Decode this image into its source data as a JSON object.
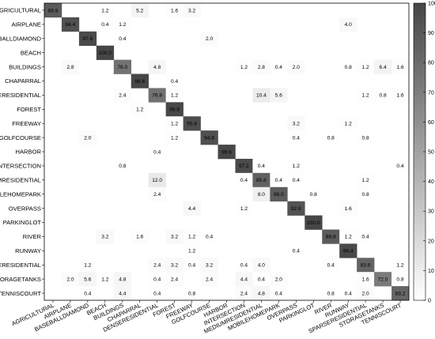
{
  "chart_data": {
    "type": "heatmap",
    "title": "",
    "xlabel": "",
    "ylabel": "",
    "row_labels": [
      "AGRICULTURAL",
      "AIRPLANE",
      "BASEBALLDIAMOND",
      "BEACH",
      "BUILDINGS",
      "CHAPARRAL",
      "DENSERESIDENTIAL",
      "FOREST",
      "FREEWAY",
      "GOLFCOURSE",
      "HARBOR",
      "INTERSECTION",
      "MEDIUMRESIDENTIAL",
      "MOBILEHOMEPARK",
      "OVERPASS",
      "PARKINGLOT",
      "RIVER",
      "RUNWAY",
      "SPARSERESIDENTIAL",
      "STORAGETANKS",
      "TENNISCOURT"
    ],
    "col_labels": [
      "AGRICULTURAL",
      "AIRPLANE",
      "BASEBALLDIAMOND",
      "BEACH",
      "BUILDINGS",
      "CHAPARRAL",
      "DENSERESIDENTIAL",
      "FOREST",
      "FREEWAY",
      "GOLFCOURSE",
      "HARBOR",
      "INTERSECTION",
      "MEDIUMRESIDENTIAL",
      "MOBILEHOMEPARK",
      "OVERPASS",
      "PARKINGLOT",
      "RIVER",
      "RUNWAY",
      "SPARSERESIDENTIAL",
      "STORAGETANKS",
      "TENNISCOURT"
    ],
    "values": [
      [
        88.8,
        null,
        null,
        1.2,
        null,
        5.2,
        null,
        1.6,
        3.2,
        null,
        null,
        null,
        null,
        null,
        null,
        null,
        null,
        null,
        null,
        null,
        null
      ],
      [
        null,
        94.4,
        null,
        0.4,
        1.2,
        null,
        null,
        null,
        null,
        null,
        null,
        null,
        null,
        null,
        null,
        null,
        null,
        4.0,
        null,
        null,
        null
      ],
      [
        null,
        null,
        97.6,
        null,
        0.4,
        null,
        null,
        null,
        null,
        2.0,
        null,
        null,
        null,
        null,
        null,
        null,
        null,
        null,
        null,
        null,
        null
      ],
      [
        null,
        null,
        null,
        100.0,
        null,
        null,
        null,
        null,
        null,
        null,
        null,
        null,
        null,
        null,
        null,
        null,
        null,
        null,
        null,
        null,
        null
      ],
      [
        null,
        2.8,
        null,
        null,
        76.0,
        null,
        4.8,
        null,
        null,
        null,
        null,
        1.2,
        2.8,
        0.4,
        2.0,
        null,
        null,
        0.8,
        1.2,
        6.4,
        1.6
      ],
      [
        null,
        null,
        null,
        null,
        null,
        99.6,
        null,
        0.4,
        null,
        null,
        null,
        null,
        null,
        null,
        null,
        null,
        null,
        null,
        null,
        null,
        null
      ],
      [
        null,
        null,
        null,
        null,
        2.4,
        null,
        76.8,
        1.2,
        null,
        null,
        null,
        null,
        10.4,
        5.6,
        null,
        null,
        null,
        null,
        1.2,
        0.8,
        1.6
      ],
      [
        null,
        null,
        null,
        null,
        null,
        1.2,
        null,
        98.8,
        null,
        null,
        null,
        null,
        null,
        null,
        null,
        null,
        null,
        null,
        null,
        null,
        null
      ],
      [
        null,
        null,
        null,
        null,
        null,
        null,
        null,
        1.2,
        95.6,
        null,
        null,
        null,
        null,
        null,
        3.2,
        null,
        null,
        1.2,
        null,
        null,
        null
      ],
      [
        null,
        null,
        2.0,
        null,
        null,
        null,
        null,
        1.2,
        null,
        94.8,
        null,
        null,
        null,
        null,
        0.4,
        null,
        0.8,
        null,
        0.8,
        null,
        null
      ],
      [
        null,
        null,
        null,
        null,
        null,
        null,
        0.4,
        null,
        null,
        null,
        99.6,
        null,
        null,
        null,
        null,
        null,
        null,
        null,
        null,
        null,
        null
      ],
      [
        null,
        null,
        null,
        null,
        0.8,
        null,
        null,
        null,
        null,
        null,
        null,
        97.2,
        0.4,
        null,
        1.2,
        null,
        null,
        null,
        null,
        null,
        0.4
      ],
      [
        null,
        null,
        null,
        null,
        null,
        null,
        12.0,
        null,
        null,
        null,
        null,
        0.4,
        85.6,
        0.4,
        0.4,
        null,
        null,
        null,
        1.2,
        null,
        null
      ],
      [
        null,
        null,
        null,
        null,
        null,
        null,
        2.4,
        null,
        null,
        null,
        null,
        null,
        8.0,
        88.0,
        null,
        0.8,
        null,
        null,
        0.8,
        null,
        null
      ],
      [
        null,
        null,
        null,
        null,
        null,
        null,
        null,
        null,
        4.4,
        null,
        null,
        1.2,
        null,
        null,
        92.8,
        null,
        null,
        1.6,
        null,
        null,
        null
      ],
      [
        null,
        null,
        null,
        null,
        null,
        null,
        null,
        null,
        null,
        null,
        null,
        null,
        null,
        null,
        null,
        100.0,
        null,
        null,
        null,
        null,
        null
      ],
      [
        null,
        null,
        null,
        3.2,
        null,
        1.6,
        null,
        3.2,
        1.2,
        0.4,
        null,
        null,
        null,
        null,
        null,
        null,
        88.8,
        1.2,
        0.4,
        null,
        null
      ],
      [
        null,
        null,
        null,
        null,
        null,
        null,
        null,
        null,
        1.2,
        null,
        null,
        null,
        null,
        null,
        0.4,
        null,
        null,
        98.4,
        null,
        null,
        null
      ],
      [
        null,
        null,
        1.2,
        null,
        null,
        null,
        2.4,
        3.2,
        0.4,
        3.2,
        null,
        0.4,
        4.0,
        null,
        null,
        null,
        0.4,
        null,
        83.6,
        null,
        1.2
      ],
      [
        null,
        2.0,
        5.6,
        1.2,
        4.8,
        null,
        0.4,
        2.4,
        null,
        2.4,
        null,
        4.4,
        0.4,
        2.0,
        null,
        null,
        null,
        null,
        1.6,
        72.0,
        0.8
      ],
      [
        null,
        null,
        0.4,
        null,
        4.4,
        null,
        0.4,
        null,
        0.8,
        null,
        null,
        2.4,
        4.8,
        0.4,
        null,
        null,
        0.8,
        0.4,
        2.0,
        null,
        83.2
      ]
    ],
    "zlim": [
      0,
      100
    ],
    "colorbar": {
      "placement": "right",
      "ticks": [
        0,
        10,
        20,
        30,
        40,
        50,
        60,
        70,
        80,
        90,
        100
      ]
    },
    "colormap": {
      "low": "#ffffff",
      "high": "#464646"
    }
  }
}
